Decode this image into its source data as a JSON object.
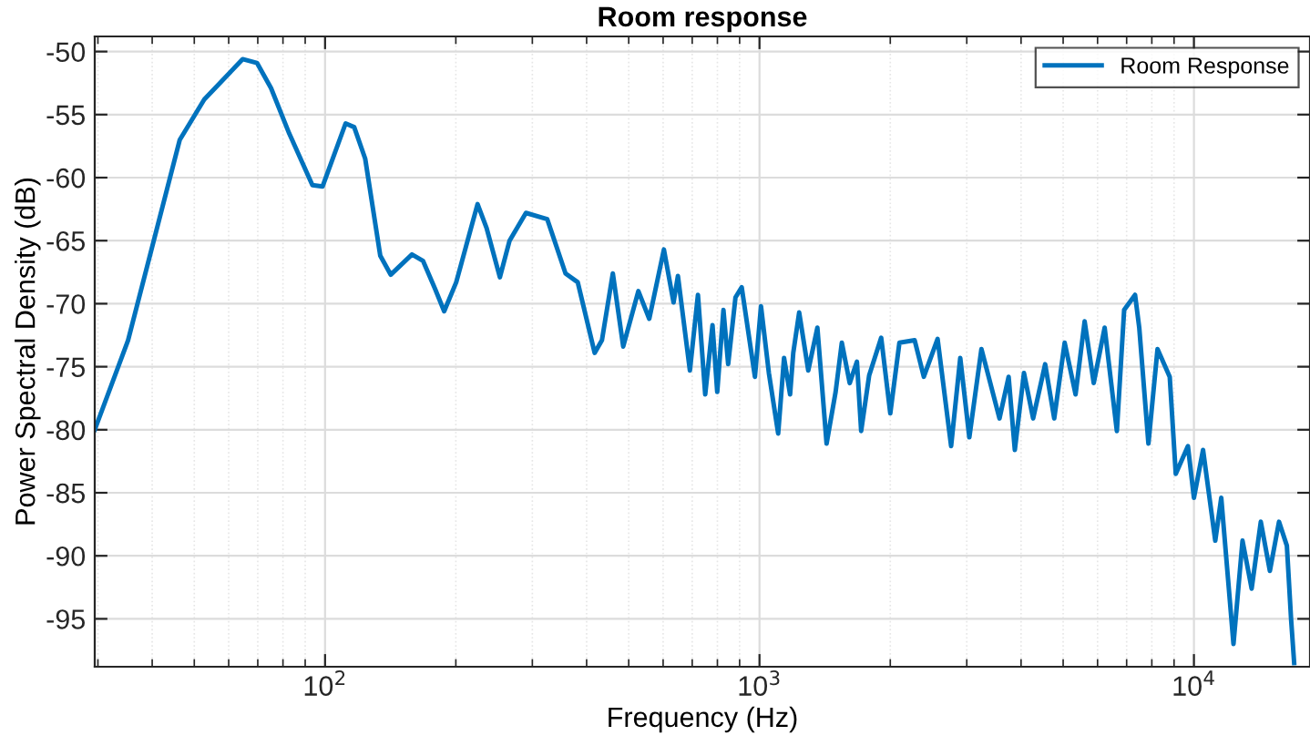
{
  "chart_data": {
    "type": "line",
    "title": "Room response",
    "xlabel": "Frequency (Hz)",
    "ylabel": "Power Spectral Density (dB)",
    "log": "x",
    "xlim": [
      29.5,
      18500
    ],
    "ylim": [
      -98.8,
      -48.8
    ],
    "xticks": [
      {
        "value": 100,
        "label": "10$^{2}$"
      },
      {
        "value": 1000,
        "label": "10$^{3}$"
      },
      {
        "value": 10000,
        "label": "10$^{4}$"
      }
    ],
    "yticks": [
      -95,
      -90,
      -85,
      -80,
      -75,
      -70,
      -65,
      -60,
      -55,
      -50
    ],
    "grid": true,
    "legend": "top right",
    "line_style": "solid",
    "marker": "none",
    "series": [
      {
        "name": "Room Response",
        "color": "#0072bd",
        "x": [
          29.5,
          35.2,
          46.3,
          52.7,
          64.6,
          69.7,
          75.1,
          82.7,
          93.5,
          98.7,
          111.5,
          116.7,
          123.7,
          134,
          141.6,
          158.5,
          168,
          179,
          188,
          200.4,
          224.4,
          235.4,
          252.6,
          265.9,
          290,
          324.7,
          357.7,
          381.6,
          417.4,
          433.8,
          459.6,
          485.6,
          526.2,
          557.5,
          602.5,
          634.1,
          649,
          691.5,
          721.6,
          750,
          779.5,
          799.3,
          826,
          847,
          880.5,
          910,
          976,
          1008,
          1051,
          1104,
          1139,
          1176,
          1196,
          1234,
          1295,
          1359,
          1427,
          1497,
          1547,
          1613,
          1676,
          1714,
          1788,
          1906,
          2000,
          2099,
          2276,
          2389,
          2570,
          2761,
          2898,
          3041,
          3242,
          3568,
          3745,
          3870,
          4062,
          4264,
          4545,
          4769,
          5040,
          5340,
          5603,
          5880,
          6230,
          6647,
          6908,
          7320,
          7484,
          7857,
          8245,
          8796,
          9082,
          9687,
          10000,
          10495,
          11197,
          11558,
          12332,
          12937,
          13579,
          14254,
          14956,
          15697,
          16366,
          16733,
          17010
        ],
        "values": [
          -80,
          -72.9,
          -57.0,
          -53.8,
          -50.6,
          -50.9,
          -52.9,
          -56.5,
          -60.6,
          -60.7,
          -55.7,
          -56.0,
          -58.5,
          -66.2,
          -67.7,
          -66.1,
          -66.6,
          -68.8,
          -70.6,
          -68.3,
          -62.1,
          -64.0,
          -67.9,
          -65.0,
          -62.8,
          -63.3,
          -67.6,
          -68.3,
          -73.9,
          -72.9,
          -67.6,
          -73.4,
          -69.0,
          -71.2,
          -65.7,
          -69.9,
          -67.8,
          -75.3,
          -69.3,
          -77.2,
          -71.7,
          -77.0,
          -70.5,
          -74.8,
          -69.5,
          -68.7,
          -75.8,
          -70.2,
          -75.5,
          -80.3,
          -74.3,
          -77.2,
          -73.9,
          -70.7,
          -75.3,
          -71.9,
          -81.1,
          -77.0,
          -73.1,
          -76.3,
          -74.6,
          -80.1,
          -75.7,
          -72.7,
          -78.7,
          -73.1,
          -72.9,
          -75.8,
          -72.8,
          -81.3,
          -74.3,
          -80.6,
          -73.6,
          -79.1,
          -75.8,
          -81.6,
          -75.5,
          -79.1,
          -74.8,
          -79.1,
          -73.1,
          -77.2,
          -71.4,
          -76.3,
          -71.9,
          -80.1,
          -70.5,
          -69.3,
          -71.9,
          -81.1,
          -73.6,
          -75.8,
          -83.5,
          -81.3,
          -85.4,
          -81.6,
          -88.8,
          -85.4,
          -97.0,
          -88.8,
          -92.6,
          -87.3,
          -91.2,
          -87.3,
          -89.2,
          -95.0,
          -98.5
        ]
      }
    ]
  }
}
